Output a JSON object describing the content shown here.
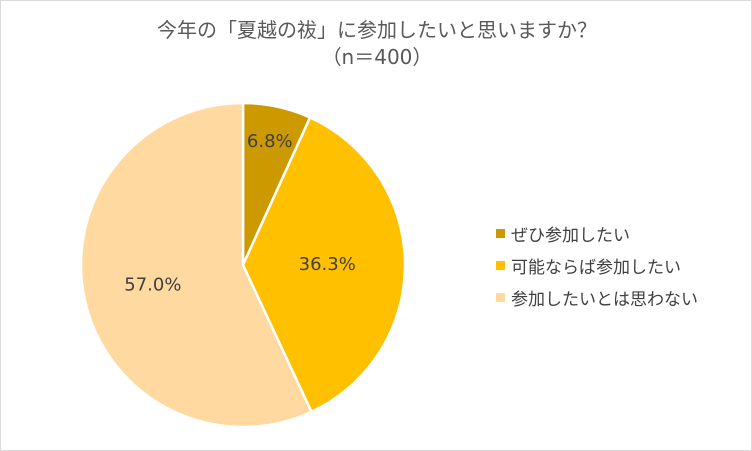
{
  "chart_data": {
    "type": "pie",
    "title": "今年の「夏越の祓」に参加したいと思いますか？",
    "subtitle": "（n＝400）",
    "categories": [
      "ぜひ参加したい",
      "可能ならば参加したい",
      "参加したいとは思わない"
    ],
    "values": [
      6.8,
      36.3,
      57.0
    ],
    "data_labels": [
      "6.8%",
      "36.3%",
      "57.0%"
    ],
    "colors": [
      "#cc9900",
      "#ffc000",
      "#ffd9a0"
    ],
    "start_angle_deg": 0,
    "direction": "clockwise",
    "legend_position": "right"
  }
}
